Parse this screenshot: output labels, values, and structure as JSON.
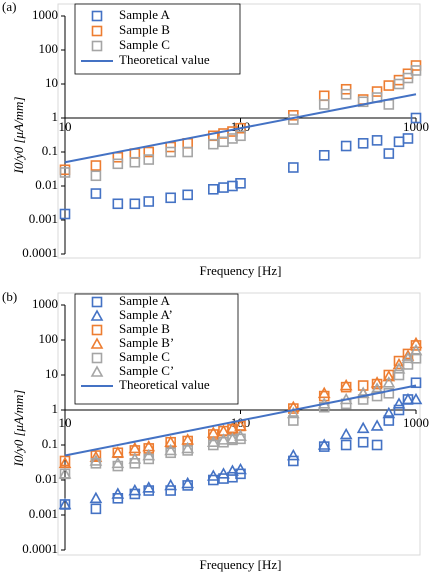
{
  "chart_data": [
    {
      "type": "scatter",
      "label": "(a)",
      "xlabel": "Frequency [Hz]",
      "ylabel": "I0/y0 [μA/mm]",
      "xscale": "log",
      "yscale": "log",
      "xlim": [
        10,
        1000
      ],
      "ylim": [
        0.0001,
        1000
      ],
      "xticks": [
        10,
        100,
        1000
      ],
      "yticks": [
        0.0001,
        0.001,
        0.01,
        0.1,
        1,
        10,
        100,
        1000
      ],
      "series": [
        {
          "name": "Sample A",
          "color": "#4472c4",
          "marker": "square",
          "x": [
            10,
            15,
            20,
            25,
            30,
            40,
            50,
            70,
            80,
            90,
            100,
            200,
            300,
            400,
            500,
            600,
            700,
            800,
            900,
            1000
          ],
          "values": [
            0.0015,
            0.006,
            0.003,
            0.003,
            0.0035,
            0.0045,
            0.0055,
            0.008,
            0.009,
            0.01,
            0.012,
            0.035,
            0.08,
            0.15,
            0.18,
            0.22,
            0.09,
            0.2,
            0.25,
            1.0
          ]
        },
        {
          "name": "Sample B",
          "color": "#ed7d31",
          "marker": "square",
          "x": [
            10,
            15,
            20,
            25,
            30,
            40,
            50,
            70,
            80,
            90,
            100,
            200,
            300,
            400,
            500,
            600,
            700,
            800,
            900,
            1000
          ],
          "values": [
            0.03,
            0.04,
            0.07,
            0.09,
            0.1,
            0.14,
            0.18,
            0.3,
            0.35,
            0.4,
            0.5,
            1.2,
            4.5,
            7,
            3.5,
            6,
            9,
            13,
            20,
            35
          ]
        },
        {
          "name": "Sample C",
          "color": "#a5a5a5",
          "marker": "square",
          "x": [
            10,
            15,
            20,
            25,
            30,
            40,
            50,
            70,
            80,
            90,
            100,
            200,
            300,
            400,
            500,
            600,
            700,
            800,
            900,
            1000
          ],
          "values": [
            0.025,
            0.02,
            0.045,
            0.05,
            0.06,
            0.1,
            0.1,
            0.17,
            0.2,
            0.25,
            0.3,
            0.9,
            2.5,
            5,
            3,
            4,
            2.5,
            10,
            15,
            25
          ]
        },
        {
          "name": "Theoretical value",
          "color": "#4472c4",
          "marker": "line",
          "x": [
            10,
            1000
          ],
          "values": [
            0.05,
            5
          ]
        }
      ]
    },
    {
      "type": "scatter",
      "label": "(b)",
      "xlabel": "Frequency [Hz]",
      "ylabel": "I0/y0 [μA/mm]",
      "xscale": "log",
      "yscale": "log",
      "xlim": [
        10,
        1000
      ],
      "ylim": [
        0.0001,
        1000
      ],
      "xticks": [
        10,
        100,
        1000
      ],
      "yticks": [
        0.0001,
        0.001,
        0.01,
        0.1,
        1,
        10,
        100,
        1000
      ],
      "series": [
        {
          "name": "Sample A",
          "color": "#4472c4",
          "marker": "square",
          "x": [
            10,
            15,
            20,
            25,
            30,
            40,
            50,
            70,
            80,
            90,
            100,
            200,
            300,
            400,
            500,
            600,
            700,
            800,
            900,
            1000
          ],
          "values": [
            0.002,
            0.0015,
            0.003,
            0.004,
            0.005,
            0.005,
            0.007,
            0.01,
            0.011,
            0.012,
            0.015,
            0.035,
            0.09,
            0.1,
            0.12,
            0.1,
            0.5,
            1,
            2,
            6
          ]
        },
        {
          "name": "Sample A’",
          "color": "#4472c4",
          "marker": "triangle",
          "x": [
            10,
            15,
            20,
            25,
            30,
            40,
            50,
            70,
            80,
            90,
            100,
            200,
            300,
            400,
            500,
            600,
            700,
            800,
            900,
            1000
          ],
          "values": [
            0.002,
            0.003,
            0.004,
            0.005,
            0.006,
            0.007,
            0.008,
            0.013,
            0.015,
            0.018,
            0.02,
            0.05,
            0.1,
            0.2,
            0.3,
            0.35,
            0.8,
            1.5,
            2,
            2
          ]
        },
        {
          "name": "Sample B",
          "color": "#ed7d31",
          "marker": "square",
          "x": [
            10,
            15,
            20,
            25,
            30,
            40,
            50,
            70,
            80,
            90,
            100,
            200,
            300,
            400,
            500,
            600,
            700,
            800,
            900,
            1000
          ],
          "values": [
            0.035,
            0.05,
            0.06,
            0.07,
            0.08,
            0.12,
            0.13,
            0.2,
            0.25,
            0.28,
            0.35,
            1.1,
            2.5,
            4.5,
            5,
            5.5,
            10,
            25,
            40,
            70
          ]
        },
        {
          "name": "Sample B’",
          "color": "#ed7d31",
          "marker": "triangle",
          "x": [
            10,
            15,
            20,
            25,
            30,
            40,
            50,
            70,
            80,
            90,
            100,
            200,
            300,
            400,
            500,
            600,
            700,
            800,
            900,
            1000
          ],
          "values": [
            0.03,
            0.045,
            0.06,
            0.08,
            0.09,
            0.12,
            0.14,
            0.22,
            0.25,
            0.3,
            0.35,
            1.2,
            3,
            5,
            3,
            6,
            9,
            20,
            35,
            80
          ]
        },
        {
          "name": "Sample C",
          "color": "#a5a5a5",
          "marker": "square",
          "x": [
            10,
            15,
            20,
            25,
            30,
            40,
            50,
            70,
            80,
            90,
            100,
            200,
            300,
            400,
            500,
            600,
            700,
            800,
            900,
            1000
          ],
          "values": [
            0.015,
            0.03,
            0.025,
            0.03,
            0.04,
            0.06,
            0.07,
            0.1,
            0.12,
            0.14,
            0.15,
            0.5,
            1.2,
            1.5,
            2,
            2.5,
            3,
            10,
            20,
            30
          ]
        },
        {
          "name": "Sample C’",
          "color": "#a5a5a5",
          "marker": "triangle",
          "x": [
            10,
            15,
            20,
            25,
            30,
            40,
            50,
            70,
            80,
            90,
            100,
            200,
            300,
            400,
            500,
            600,
            700,
            800,
            900,
            1000
          ],
          "values": [
            0.015,
            0.035,
            0.03,
            0.04,
            0.05,
            0.07,
            0.08,
            0.12,
            0.14,
            0.15,
            0.18,
            0.8,
            1.5,
            2,
            3,
            4,
            6,
            15,
            30,
            50
          ]
        },
        {
          "name": "Theoretical value",
          "color": "#4472c4",
          "marker": "line",
          "x": [
            10,
            1000
          ],
          "values": [
            0.05,
            5
          ]
        }
      ]
    }
  ]
}
